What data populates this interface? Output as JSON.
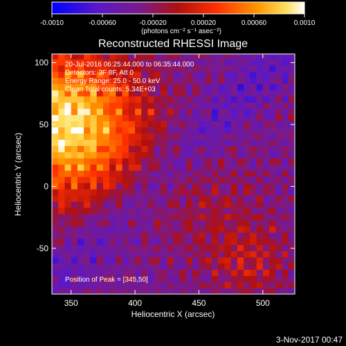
{
  "chart_data": {
    "type": "heatmap",
    "title": "Reconstructed RHESSI Image",
    "xlabel": "Heliocentric X (arcsec)",
    "ylabel": "Heliocentric Y (arcsec)",
    "xlim": [
      335,
      525
    ],
    "ylim": [
      -87,
      107
    ],
    "x_ticks": [
      350,
      400,
      450,
      500
    ],
    "y_ticks": [
      100,
      50,
      0,
      -50
    ],
    "colorbar": {
      "range": [
        -0.001,
        0.001
      ],
      "ticks": [
        "-0.0010",
        "-0.00060",
        "-0.00020",
        "0.00020",
        "0.00060",
        "0.0010"
      ],
      "units": "(photons cm⁻² s⁻¹ asec⁻²)",
      "colormap": [
        "#0000ff",
        "#5a18c8",
        "#7a1a8a",
        "#b01010",
        "#ff3000",
        "#ff9a00",
        "#ffe060",
        "#ffffff"
      ]
    },
    "annotations": [
      "20-Jul-2016 06:25:44.000 to 06:35:44.000",
      "Detectors: 3F 8F, Att 0",
      "Energy Range: 25.0 - 50.0 keV",
      "Clean     Total counts: 5.34E+03"
    ],
    "peak_label": "Position of Peak = [345,50]",
    "peak": {
      "x": 345,
      "y": 50
    }
  },
  "footer": {
    "timestamp": "3-Nov-2017 00:47"
  }
}
